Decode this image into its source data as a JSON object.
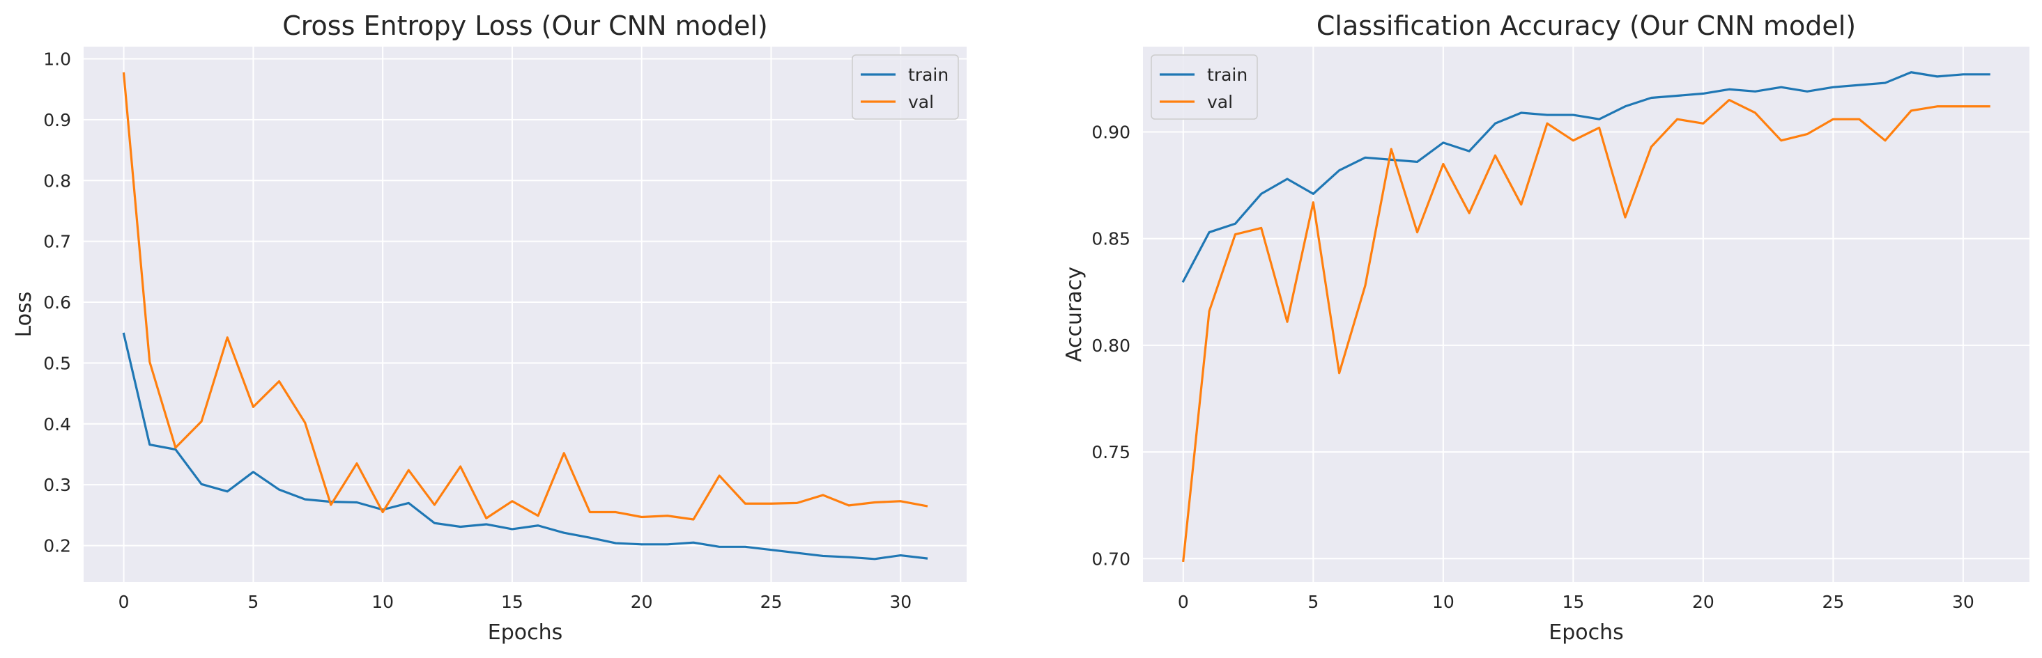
{
  "chart_data": [
    {
      "type": "line",
      "title": "Cross Entropy Loss (Our CNN model)",
      "xlabel": "Epochs",
      "ylabel": "Loss",
      "xlim": [
        -1.55,
        32.55
      ],
      "ylim": [
        0.14,
        1.02
      ],
      "xticks": [
        0,
        5,
        10,
        15,
        20,
        25,
        30
      ],
      "yticks": [
        0.2,
        0.3,
        0.4,
        0.5,
        0.6,
        0.7,
        0.8,
        0.9,
        1.0
      ],
      "ytick_labels": [
        "0.2",
        "0.3",
        "0.4",
        "0.5",
        "0.6",
        "0.7",
        "0.8",
        "0.9",
        "1.0"
      ],
      "grid": true,
      "legend_position": "top-right",
      "x": [
        0,
        1,
        2,
        3,
        4,
        5,
        6,
        7,
        8,
        9,
        10,
        11,
        12,
        13,
        14,
        15,
        16,
        17,
        18,
        19,
        20,
        21,
        22,
        23,
        24,
        25,
        26,
        27,
        28,
        29,
        30,
        31
      ],
      "series": [
        {
          "name": "train",
          "color": "#1f77b4",
          "values": [
            0.548,
            0.366,
            0.358,
            0.301,
            0.289,
            0.321,
            0.292,
            0.276,
            0.272,
            0.271,
            0.259,
            0.27,
            0.237,
            0.231,
            0.235,
            0.227,
            0.233,
            0.221,
            0.213,
            0.204,
            0.202,
            0.202,
            0.205,
            0.198,
            0.198,
            0.193,
            0.188,
            0.183,
            0.181,
            0.178,
            0.184,
            0.179
          ]
        },
        {
          "name": "val",
          "color": "#ff7f0e",
          "values": [
            0.976,
            0.502,
            0.361,
            0.404,
            0.542,
            0.428,
            0.47,
            0.402,
            0.267,
            0.335,
            0.255,
            0.324,
            0.267,
            0.33,
            0.245,
            0.273,
            0.249,
            0.352,
            0.255,
            0.255,
            0.247,
            0.249,
            0.243,
            0.315,
            0.269,
            0.269,
            0.27,
            0.283,
            0.266,
            0.271,
            0.273,
            0.265
          ]
        }
      ]
    },
    {
      "type": "line",
      "title": "Classification Accuracy (Our CNN model)",
      "xlabel": "Epochs",
      "ylabel": "Accuracy",
      "xlim": [
        -1.55,
        32.55
      ],
      "ylim": [
        0.689,
        0.94
      ],
      "xticks": [
        0,
        5,
        10,
        15,
        20,
        25,
        30
      ],
      "yticks": [
        0.7,
        0.75,
        0.8,
        0.85,
        0.9
      ],
      "ytick_labels": [
        "0.70",
        "0.75",
        "0.80",
        "0.85",
        "0.90"
      ],
      "grid": true,
      "legend_position": "top-left",
      "x": [
        0,
        1,
        2,
        3,
        4,
        5,
        6,
        7,
        8,
        9,
        10,
        11,
        12,
        13,
        14,
        15,
        16,
        17,
        18,
        19,
        20,
        21,
        22,
        23,
        24,
        25,
        26,
        27,
        28,
        29,
        30,
        31
      ],
      "series": [
        {
          "name": "train",
          "color": "#1f77b4",
          "values": [
            0.83,
            0.853,
            0.857,
            0.871,
            0.878,
            0.871,
            0.882,
            0.888,
            0.887,
            0.886,
            0.895,
            0.891,
            0.904,
            0.909,
            0.908,
            0.908,
            0.906,
            0.912,
            0.916,
            0.917,
            0.918,
            0.92,
            0.919,
            0.921,
            0.919,
            0.921,
            0.922,
            0.923,
            0.928,
            0.926,
            0.927,
            0.927
          ]
        },
        {
          "name": "val",
          "color": "#ff7f0e",
          "values": [
            0.699,
            0.816,
            0.852,
            0.855,
            0.811,
            0.867,
            0.787,
            0.828,
            0.892,
            0.853,
            0.885,
            0.862,
            0.889,
            0.866,
            0.904,
            0.896,
            0.902,
            0.86,
            0.893,
            0.906,
            0.904,
            0.915,
            0.909,
            0.896,
            0.899,
            0.906,
            0.906,
            0.896,
            0.91,
            0.912,
            0.912,
            0.912
          ]
        }
      ]
    }
  ]
}
